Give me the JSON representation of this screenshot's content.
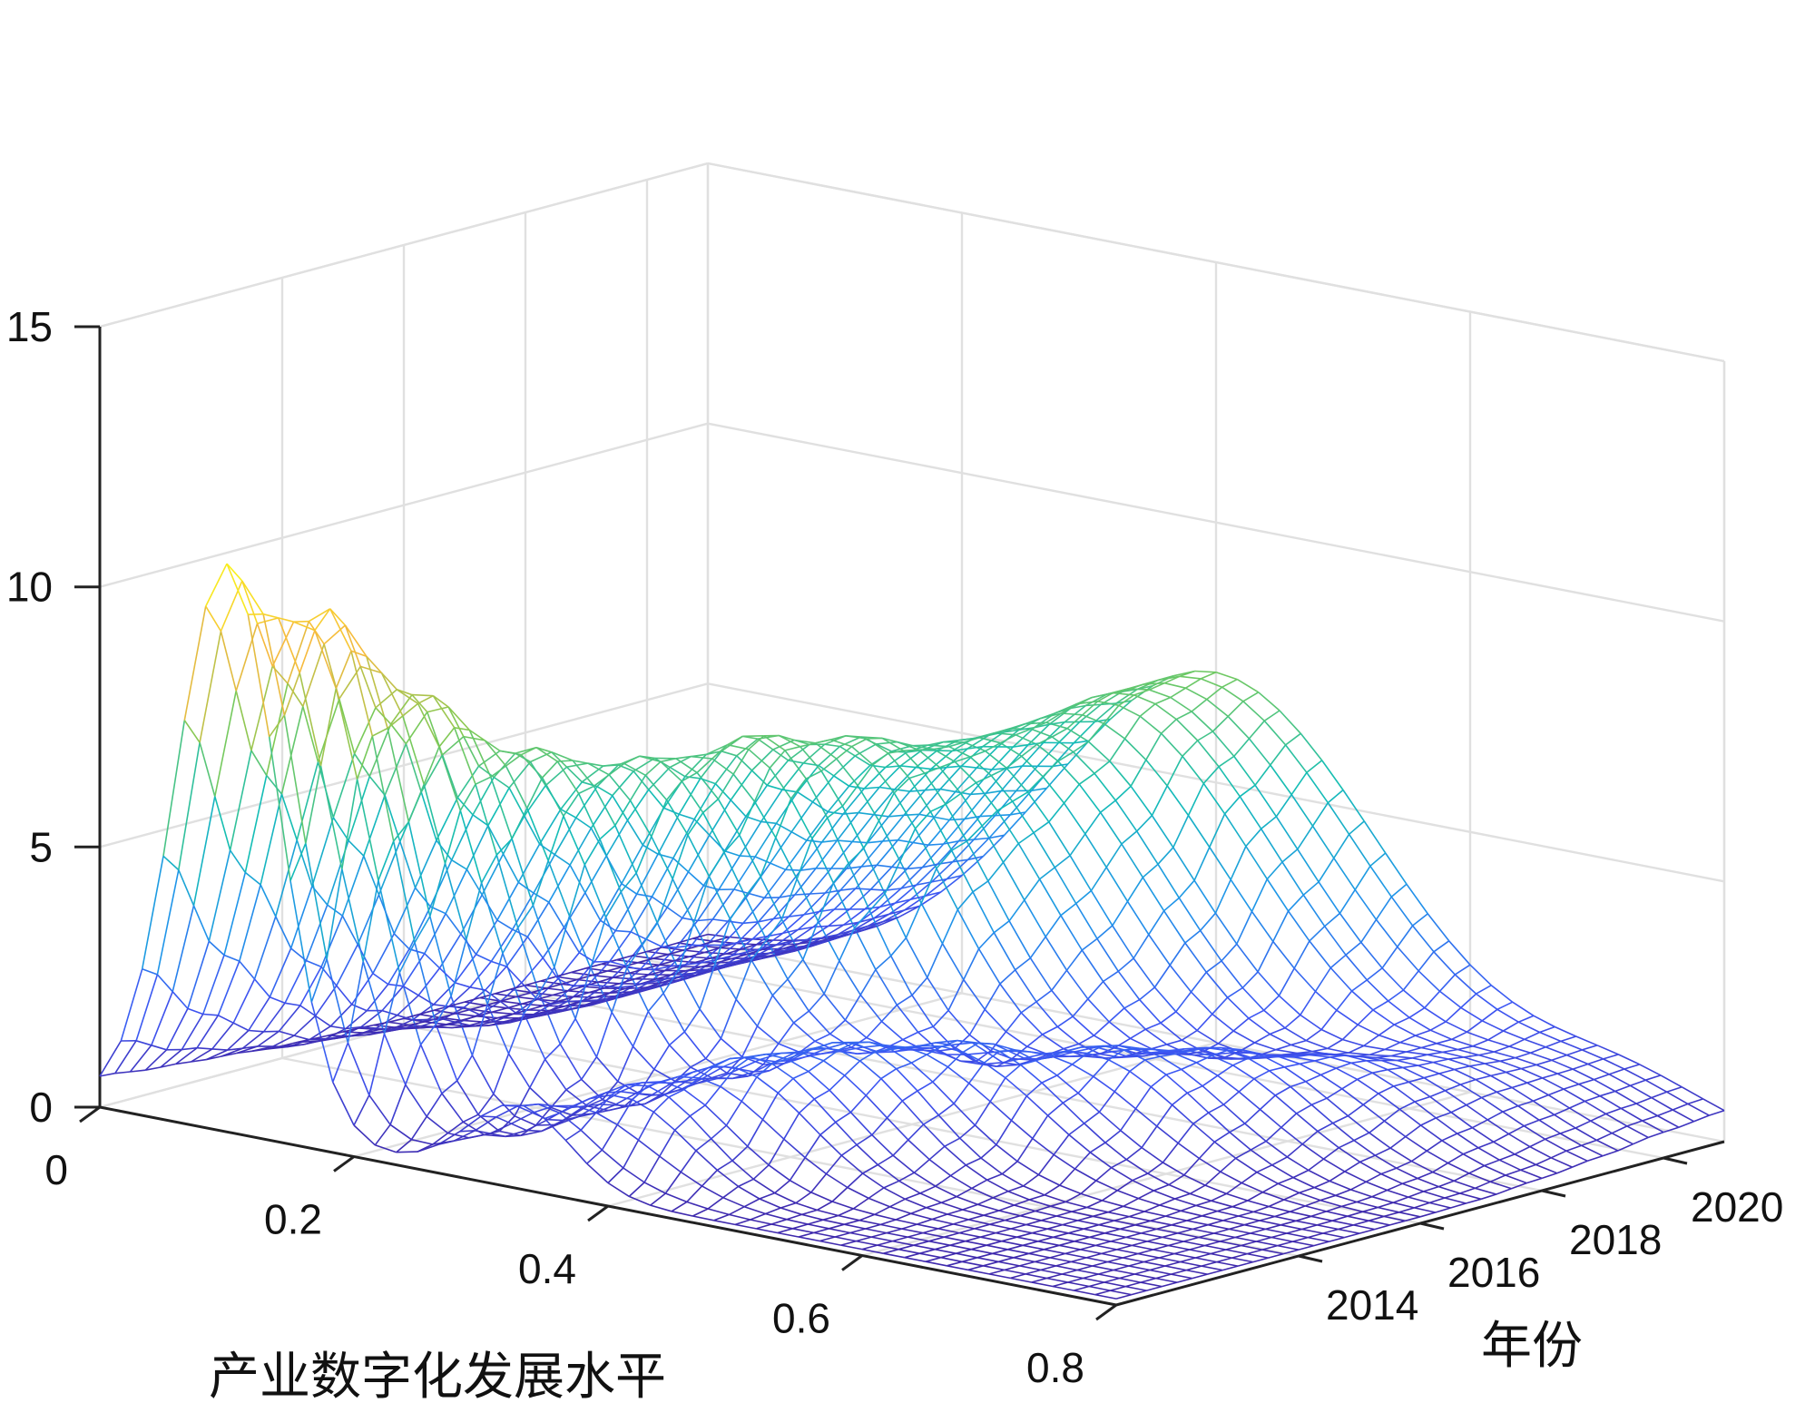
{
  "chart_data": {
    "type": "surface",
    "title": "",
    "xlabel": "产业数字化发展水平",
    "ylabel": "年份",
    "zlabel": "",
    "xlim": [
      0,
      0.8
    ],
    "ylim": [
      2011,
      2021
    ],
    "zlim": [
      0,
      15
    ],
    "x_ticks": [
      {
        "value": 0,
        "label": "0"
      },
      {
        "value": 0.2,
        "label": "0.2"
      },
      {
        "value": 0.4,
        "label": "0.4"
      },
      {
        "value": 0.6,
        "label": "0.6"
      },
      {
        "value": 0.8,
        "label": "0.8"
      }
    ],
    "y_ticks": [
      {
        "value": 2014,
        "label": "2014"
      },
      {
        "value": 2016,
        "label": "2016"
      },
      {
        "value": 2018,
        "label": "2018"
      },
      {
        "value": 2020,
        "label": "2020"
      }
    ],
    "z_ticks": [
      {
        "value": 0,
        "label": "0"
      },
      {
        "value": 5,
        "label": "5"
      },
      {
        "value": 10,
        "label": "10"
      },
      {
        "value": 15,
        "label": "15"
      }
    ],
    "grid": true,
    "colormap": "parula",
    "colors": [
      "#3e26a8",
      "#3d55f3",
      "#1f95e9",
      "#13bdb5",
      "#7dca56",
      "#f6b93d",
      "#f9fb15"
    ],
    "series": [
      {
        "year": 2011,
        "peaks": [
          {
            "x": 0.1,
            "height": 10.8,
            "width": 0.04
          },
          {
            "x": 0.33,
            "height": 1.5,
            "width": 0.04
          }
        ]
      },
      {
        "year": 2012,
        "peaks": [
          {
            "x": 0.13,
            "height": 9.8,
            "width": 0.05
          },
          {
            "x": 0.38,
            "height": 1.8,
            "width": 0.05
          }
        ]
      },
      {
        "year": 2013,
        "peaks": [
          {
            "x": 0.16,
            "height": 8.0,
            "width": 0.06
          },
          {
            "x": 0.42,
            "height": 2.2,
            "width": 0.06
          }
        ]
      },
      {
        "year": 2014,
        "peaks": [
          {
            "x": 0.2,
            "height": 6.8,
            "width": 0.07
          },
          {
            "x": 0.45,
            "height": 2.3,
            "width": 0.06
          }
        ]
      },
      {
        "year": 2015,
        "peaks": [
          {
            "x": 0.24,
            "height": 6.5,
            "width": 0.08
          },
          {
            "x": 0.5,
            "height": 2.2,
            "width": 0.07
          }
        ]
      },
      {
        "year": 2016,
        "peaks": [
          {
            "x": 0.28,
            "height": 6.8,
            "width": 0.08
          },
          {
            "x": 0.56,
            "height": 2.1,
            "width": 0.07
          }
        ]
      },
      {
        "year": 2017,
        "peaks": [
          {
            "x": 0.31,
            "height": 6.6,
            "width": 0.09
          },
          {
            "x": 0.6,
            "height": 1.9,
            "width": 0.07
          }
        ]
      },
      {
        "year": 2018,
        "peaks": [
          {
            "x": 0.33,
            "height": 6.2,
            "width": 0.1
          },
          {
            "x": 0.64,
            "height": 1.6,
            "width": 0.07
          }
        ]
      },
      {
        "year": 2019,
        "peaks": [
          {
            "x": 0.35,
            "height": 6.3,
            "width": 0.11
          },
          {
            "x": 0.67,
            "height": 1.3,
            "width": 0.07
          }
        ]
      },
      {
        "year": 2020,
        "peaks": [
          {
            "x": 0.38,
            "height": 6.8,
            "width": 0.12
          },
          {
            "x": 0.7,
            "height": 1.0,
            "width": 0.07
          }
        ]
      },
      {
        "year": 2021,
        "peaks": [
          {
            "x": 0.4,
            "height": 7.0,
            "width": 0.13
          },
          {
            "x": 0.72,
            "height": 0.8,
            "width": 0.07
          }
        ]
      }
    ]
  }
}
